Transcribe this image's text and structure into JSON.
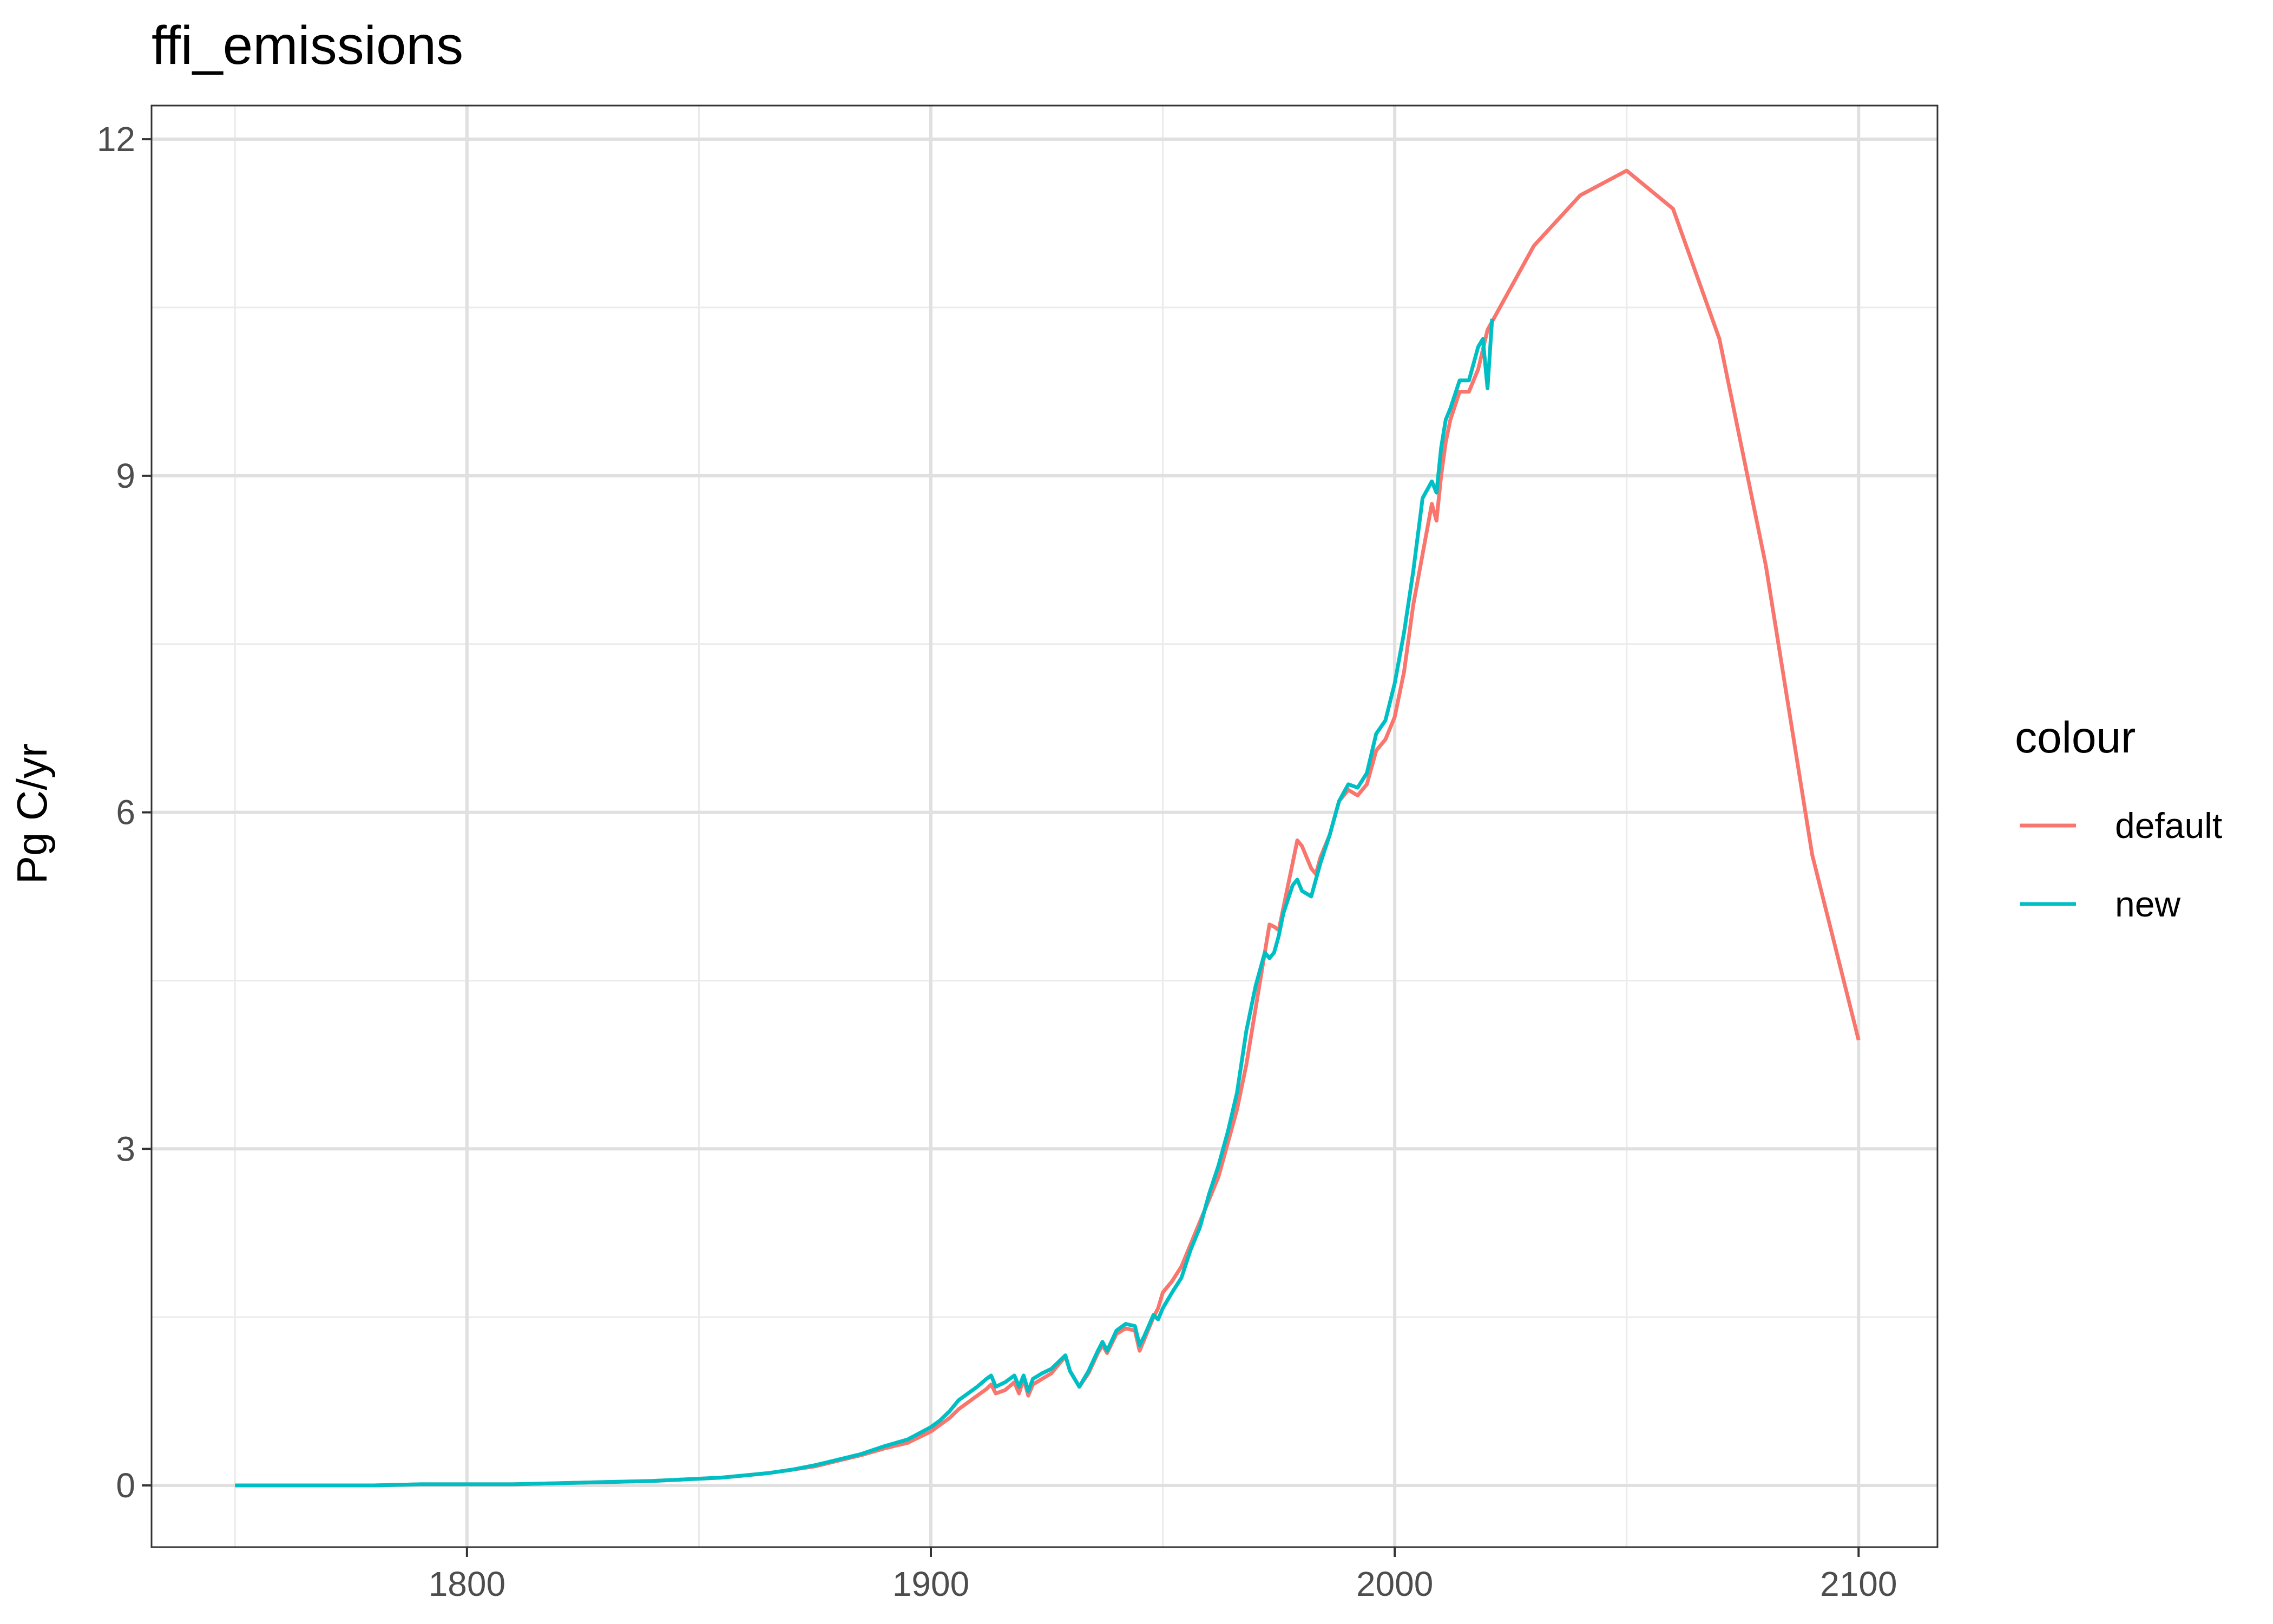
{
  "chart_data": {
    "type": "line",
    "title": "ffi_emissions",
    "xlabel": "",
    "ylabel": "Pg C/yr",
    "xlim": [
      1732,
      2117
    ],
    "ylim": [
      -0.55,
      12.3
    ],
    "x_ticks": [
      1800,
      1900,
      2000,
      2100
    ],
    "y_ticks": [
      0,
      3,
      6,
      9,
      12
    ],
    "x_minor": [
      1750,
      1850,
      1950,
      2050
    ],
    "y_minor": [
      1.5,
      4.5,
      7.5,
      10.5
    ],
    "grid": true,
    "legend": {
      "title": "colour",
      "position": "right"
    },
    "series": [
      {
        "name": "default",
        "color": "#F8766D",
        "x": [
          1750,
          1760,
          1770,
          1780,
          1790,
          1800,
          1810,
          1820,
          1830,
          1840,
          1850,
          1855,
          1860,
          1865,
          1870,
          1875,
          1880,
          1885,
          1890,
          1895,
          1900,
          1902,
          1904,
          1906,
          1908,
          1910,
          1912,
          1913,
          1914,
          1916,
          1918,
          1919,
          1920,
          1921,
          1922,
          1924,
          1926,
          1927,
          1928,
          1929,
          1930,
          1932,
          1934,
          1936,
          1937,
          1938,
          1940,
          1942,
          1944,
          1945,
          1946,
          1948,
          1949,
          1950,
          1952,
          1954,
          1956,
          1958,
          1960,
          1962,
          1964,
          1966,
          1968,
          1970,
          1972,
          1973,
          1974,
          1975,
          1976,
          1978,
          1979,
          1980,
          1982,
          1983,
          1984,
          1986,
          1988,
          1990,
          1992,
          1994,
          1996,
          1998,
          2000,
          2002,
          2004,
          2006,
          2008,
          2009,
          2010,
          2011,
          2012,
          2014,
          2016,
          2018,
          2020,
          2030,
          2040,
          2050,
          2060,
          2070,
          2080,
          2090,
          2100
        ],
        "y": [
          0.0,
          0.0,
          0.0,
          0.0,
          0.01,
          0.01,
          0.01,
          0.02,
          0.03,
          0.04,
          0.06,
          0.07,
          0.09,
          0.11,
          0.14,
          0.17,
          0.22,
          0.27,
          0.33,
          0.38,
          0.48,
          0.54,
          0.6,
          0.68,
          0.74,
          0.8,
          0.86,
          0.9,
          0.82,
          0.85,
          0.92,
          0.82,
          0.95,
          0.8,
          0.9,
          0.95,
          1.0,
          1.05,
          1.1,
          1.15,
          1.02,
          0.88,
          1.0,
          1.18,
          1.25,
          1.18,
          1.35,
          1.4,
          1.38,
          1.2,
          1.3,
          1.5,
          1.58,
          1.72,
          1.82,
          1.95,
          2.15,
          2.35,
          2.55,
          2.75,
          3.05,
          3.35,
          3.75,
          4.25,
          4.75,
          5.0,
          4.98,
          4.95,
          5.15,
          5.55,
          5.75,
          5.7,
          5.5,
          5.45,
          5.6,
          5.8,
          6.1,
          6.2,
          6.15,
          6.25,
          6.55,
          6.65,
          6.85,
          7.25,
          7.85,
          8.3,
          8.75,
          8.6,
          9.0,
          9.3,
          9.5,
          9.75,
          9.75,
          9.95,
          10.3,
          11.05,
          11.5,
          11.72,
          11.38,
          10.22,
          8.2,
          5.62,
          3.97
        ]
      },
      {
        "name": "new",
        "color": "#00BFC4",
        "x": [
          1750,
          1760,
          1770,
          1780,
          1790,
          1800,
          1810,
          1820,
          1830,
          1840,
          1850,
          1855,
          1860,
          1865,
          1870,
          1875,
          1880,
          1885,
          1890,
          1895,
          1900,
          1902,
          1904,
          1906,
          1908,
          1910,
          1912,
          1913,
          1914,
          1916,
          1918,
          1919,
          1920,
          1921,
          1922,
          1924,
          1926,
          1927,
          1928,
          1929,
          1930,
          1932,
          1934,
          1936,
          1937,
          1938,
          1940,
          1942,
          1944,
          1945,
          1946,
          1948,
          1949,
          1950,
          1952,
          1954,
          1956,
          1958,
          1960,
          1962,
          1964,
          1966,
          1968,
          1970,
          1972,
          1973,
          1974,
          1975,
          1976,
          1978,
          1979,
          1980,
          1982,
          1983,
          1984,
          1986,
          1988,
          1990,
          1992,
          1994,
          1996,
          1998,
          2000,
          2002,
          2004,
          2006,
          2008,
          2009,
          2010,
          2011,
          2012,
          2014,
          2016,
          2018,
          2019,
          2020,
          2021
        ],
        "y": [
          0.0,
          0.0,
          0.0,
          0.0,
          0.01,
          0.01,
          0.01,
          0.02,
          0.03,
          0.04,
          0.06,
          0.07,
          0.09,
          0.11,
          0.14,
          0.18,
          0.23,
          0.28,
          0.35,
          0.41,
          0.52,
          0.58,
          0.66,
          0.76,
          0.82,
          0.88,
          0.95,
          0.98,
          0.88,
          0.92,
          0.98,
          0.88,
          0.98,
          0.84,
          0.95,
          1.0,
          1.04,
          1.08,
          1.12,
          1.16,
          1.02,
          0.88,
          1.02,
          1.2,
          1.28,
          1.2,
          1.38,
          1.44,
          1.42,
          1.25,
          1.33,
          1.52,
          1.48,
          1.58,
          1.72,
          1.85,
          2.1,
          2.3,
          2.6,
          2.85,
          3.15,
          3.5,
          4.05,
          4.45,
          4.75,
          4.7,
          4.75,
          4.9,
          5.1,
          5.35,
          5.4,
          5.3,
          5.25,
          5.4,
          5.55,
          5.8,
          6.1,
          6.25,
          6.22,
          6.35,
          6.7,
          6.82,
          7.15,
          7.6,
          8.15,
          8.8,
          8.95,
          8.85,
          9.25,
          9.5,
          9.6,
          9.85,
          9.85,
          10.15,
          10.22,
          9.78,
          10.4
        ]
      }
    ]
  }
}
